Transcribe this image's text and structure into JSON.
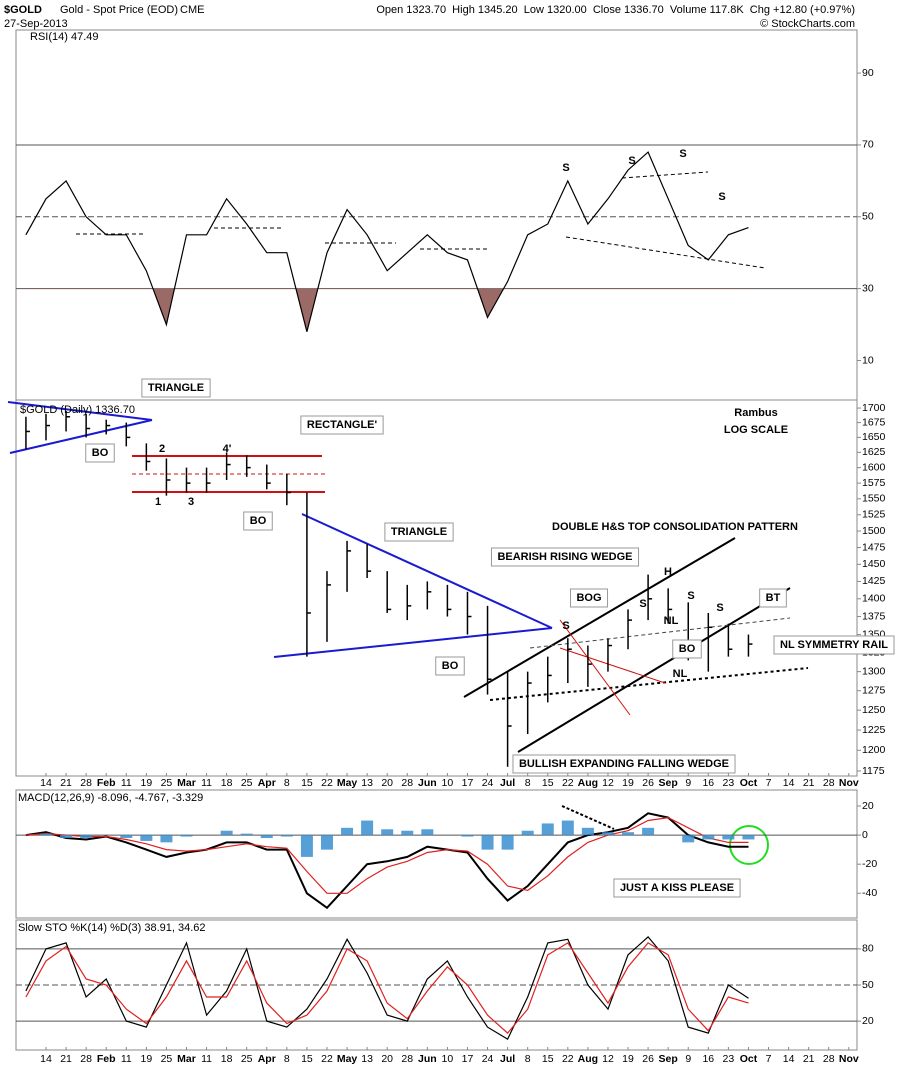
{
  "header": {
    "symbol": "$GOLD",
    "name": "Gold - Spot Price (EOD)",
    "exchange": "CME",
    "date": "27-Sep-2013",
    "quote": "Open 1323.70  High 1345.20  Low 1320.00  Close 1336.70  Volume 117.8K  Chg +12.80 (+0.97%)",
    "source": "© StockCharts.com"
  },
  "chart_data": [
    {
      "type": "line",
      "legend": "RSI(14) 47.49",
      "ylim": [
        -1,
        102
      ],
      "yticks": [
        10,
        30,
        50,
        70,
        90
      ],
      "reference_lines": [
        30,
        50,
        70
      ],
      "oversold_fill": 30,
      "x": [
        -1,
        0,
        1,
        2,
        3,
        4,
        5,
        6,
        7,
        8,
        9,
        10,
        11,
        12,
        13,
        14,
        15,
        16,
        17,
        18,
        19,
        20,
        21,
        22,
        23,
        24,
        25,
        26,
        27,
        28,
        29,
        30,
        31,
        32,
        33,
        34,
        35
      ],
      "series": [
        {
          "name": "RSI(14)",
          "color": "#000000",
          "values": [
            45,
            55,
            60,
            50,
            45,
            45,
            35,
            20,
            45,
            45,
            55,
            48,
            40,
            40,
            18,
            40,
            52,
            45,
            35,
            40,
            45,
            40,
            38,
            22,
            32,
            45,
            48,
            60,
            48,
            55,
            63,
            68,
            55,
            42,
            38,
            45,
            47
          ]
        }
      ],
      "annotations": [
        "S",
        "S",
        "S",
        "S"
      ]
    },
    {
      "type": "ohlc",
      "legend": "$GOLD (Daily) 1336.70",
      "log_scale": true,
      "color": "#000000",
      "ylim": [
        1169,
        1714
      ],
      "yticks": [
        1175,
        1200,
        1225,
        1250,
        1275,
        1300,
        1325,
        1350,
        1375,
        1400,
        1425,
        1450,
        1475,
        1500,
        1525,
        1550,
        1575,
        1600,
        1625,
        1650,
        1675,
        1700
      ],
      "x": [
        -1,
        0,
        1,
        2,
        3,
        4,
        5,
        6,
        7,
        8,
        9,
        10,
        11,
        12,
        13,
        14,
        15,
        16,
        17,
        18,
        19,
        20,
        21,
        22,
        23,
        24,
        25,
        26,
        27,
        28,
        29,
        30,
        31,
        32,
        33,
        34,
        35
      ],
      "high": [
        1685,
        1690,
        1695,
        1690,
        1680,
        1675,
        1640,
        1615,
        1600,
        1600,
        1625,
        1620,
        1605,
        1590,
        1560,
        1440,
        1485,
        1480,
        1440,
        1420,
        1425,
        1420,
        1410,
        1390,
        1300,
        1300,
        1320,
        1345,
        1335,
        1345,
        1385,
        1435,
        1415,
        1395,
        1380,
        1365,
        1350
      ],
      "low": [
        1630,
        1645,
        1660,
        1650,
        1655,
        1635,
        1595,
        1555,
        1560,
        1560,
        1580,
        1585,
        1565,
        1540,
        1320,
        1340,
        1410,
        1430,
        1380,
        1370,
        1385,
        1375,
        1350,
        1270,
        1180,
        1220,
        1260,
        1285,
        1280,
        1300,
        1330,
        1370,
        1365,
        1315,
        1300,
        1320,
        1320
      ],
      "close": [
        1660,
        1670,
        1685,
        1665,
        1670,
        1650,
        1610,
        1580,
        1575,
        1575,
        1605,
        1600,
        1575,
        1560,
        1380,
        1420,
        1470,
        1440,
        1385,
        1390,
        1410,
        1385,
        1375,
        1290,
        1230,
        1285,
        1295,
        1330,
        1310,
        1335,
        1370,
        1400,
        1385,
        1330,
        1360,
        1330,
        1337
      ],
      "xlim": [
        -1.5,
        40.4
      ],
      "xticks": [
        {
          "value": 0,
          "label": "14"
        },
        {
          "value": 1,
          "label": "21"
        },
        {
          "value": 2,
          "label": "28"
        },
        {
          "value": 3,
          "label": "Feb"
        },
        {
          "value": 4,
          "label": "11"
        },
        {
          "value": 5,
          "label": "19"
        },
        {
          "value": 6,
          "label": "25"
        },
        {
          "value": 7,
          "label": "Mar"
        },
        {
          "value": 8,
          "label": "11"
        },
        {
          "value": 9,
          "label": "18"
        },
        {
          "value": 10,
          "label": "25"
        },
        {
          "value": 11,
          "label": "Apr"
        },
        {
          "value": 12,
          "label": "8"
        },
        {
          "value": 13,
          "label": "15"
        },
        {
          "value": 14,
          "label": "22"
        },
        {
          "value": 15,
          "label": "May"
        },
        {
          "value": 16,
          "label": "13"
        },
        {
          "value": 17,
          "label": "20"
        },
        {
          "value": 18,
          "label": "28"
        },
        {
          "value": 19,
          "label": "Jun"
        },
        {
          "value": 20,
          "label": "10"
        },
        {
          "value": 21,
          "label": "17"
        },
        {
          "value": 22,
          "label": "24"
        },
        {
          "value": 23,
          "label": "Jul"
        },
        {
          "value": 24,
          "label": "8"
        },
        {
          "value": 25,
          "label": "15"
        },
        {
          "value": 26,
          "label": "22"
        },
        {
          "value": 27,
          "label": "Aug"
        },
        {
          "value": 28,
          "label": "12"
        },
        {
          "value": 29,
          "label": "19"
        },
        {
          "value": 30,
          "label": "26"
        },
        {
          "value": 31,
          "label": "Sep"
        },
        {
          "value": 32,
          "label": "9"
        },
        {
          "value": 33,
          "label": "16"
        },
        {
          "value": 34,
          "label": "23"
        },
        {
          "value": 35,
          "label": "Oct"
        },
        {
          "value": 36,
          "label": "7"
        },
        {
          "value": 37,
          "label": "14"
        },
        {
          "value": 38,
          "label": "21"
        },
        {
          "value": 39,
          "label": "28"
        },
        {
          "value": 40,
          "label": "Nov"
        }
      ],
      "annotations": [
        "TRIANGLE",
        "BO",
        "RECTANGLE'",
        "2",
        "4'",
        "1",
        "3",
        "BO",
        "TRIANGLE",
        "BO",
        "Rambus",
        "LOG SCALE",
        "DOUBLE H&S TOP CONSOLIDATION PATTERN",
        "BEARISH RISING WEDGE",
        "H",
        "S",
        "S",
        "S",
        "S",
        "BOG",
        "NL",
        "NL",
        "BO",
        "BT",
        "NL SYMMETRY RAIL",
        "BULLISH EXPANDING FALLING WEDGE"
      ]
    },
    {
      "type": "line",
      "legend": "MACD(12,26,9) -8.096, -4.767, -3.329",
      "ylim": [
        -57,
        31
      ],
      "yticks": [
        -40,
        -20,
        0,
        20
      ],
      "reference_lines": [
        0
      ],
      "x": [
        -1,
        0,
        1,
        2,
        3,
        4,
        5,
        6,
        7,
        8,
        9,
        10,
        11,
        12,
        13,
        14,
        15,
        16,
        17,
        18,
        19,
        20,
        21,
        22,
        23,
        24,
        25,
        26,
        27,
        28,
        29,
        30,
        31,
        32,
        33,
        34,
        35
      ],
      "series": [
        {
          "name": "MACD",
          "color": "#000000",
          "values": [
            0,
            2,
            -2,
            -3,
            -1,
            -5,
            -10,
            -15,
            -12,
            -10,
            -5,
            -5,
            -10,
            -10,
            -40,
            -50,
            -35,
            -20,
            -18,
            -15,
            -8,
            -10,
            -12,
            -30,
            -45,
            -35,
            -20,
            -5,
            0,
            2,
            5,
            15,
            12,
            0,
            -5,
            -8,
            -8
          ]
        },
        {
          "name": "Signal",
          "color": "#e02020",
          "values": [
            0,
            1,
            0,
            -1,
            -1,
            -3,
            -6,
            -10,
            -11,
            -10,
            -8,
            -6,
            -8,
            -9,
            -25,
            -40,
            -40,
            -30,
            -22,
            -18,
            -12,
            -10,
            -11,
            -20,
            -35,
            -38,
            -28,
            -15,
            -5,
            0,
            3,
            10,
            12,
            5,
            -2,
            -5,
            -5
          ]
        },
        {
          "name": "Histogram",
          "color": "#3a8fd0",
          "style": "histogram",
          "values": [
            0,
            1,
            -2,
            -2,
            0,
            -2,
            -4,
            -5,
            -1,
            0,
            3,
            1,
            -2,
            -1,
            -15,
            -10,
            5,
            10,
            4,
            3,
            4,
            0,
            -1,
            -10,
            -10,
            3,
            8,
            10,
            5,
            2,
            2,
            5,
            0,
            -5,
            -3,
            -3,
            -3
          ]
        }
      ],
      "annotations": [
        "JUST A KISS PLEASE"
      ]
    },
    {
      "type": "line",
      "legend": "Slow STO %K(14) %D(3) 38.91, 34.62",
      "ylim": [
        -4,
        104
      ],
      "yticks": [
        20,
        50,
        80
      ],
      "reference_lines": [
        20,
        50,
        80
      ],
      "x": [
        -1,
        0,
        1,
        2,
        3,
        4,
        5,
        6,
        7,
        8,
        9,
        10,
        11,
        12,
        13,
        14,
        15,
        16,
        17,
        18,
        19,
        20,
        21,
        22,
        23,
        24,
        25,
        26,
        27,
        28,
        29,
        30,
        31,
        32,
        33,
        34,
        35
      ],
      "series": [
        {
          "name": "%K",
          "color": "#000000",
          "values": [
            45,
            80,
            85,
            40,
            55,
            20,
            15,
            50,
            85,
            25,
            45,
            80,
            20,
            15,
            30,
            55,
            88,
            60,
            25,
            20,
            55,
            70,
            40,
            15,
            5,
            40,
            85,
            88,
            50,
            30,
            75,
            90,
            70,
            15,
            10,
            50,
            39
          ]
        },
        {
          "name": "%D",
          "color": "#e02020",
          "values": [
            40,
            70,
            82,
            55,
            50,
            30,
            18,
            40,
            70,
            40,
            40,
            70,
            35,
            18,
            25,
            45,
            80,
            70,
            35,
            22,
            45,
            65,
            50,
            25,
            10,
            30,
            75,
            85,
            60,
            35,
            65,
            85,
            75,
            30,
            12,
            40,
            35
          ]
        }
      ],
      "xlim": [
        -1.5,
        40.4
      ],
      "xticks": [
        {
          "value": 0,
          "label": "14"
        },
        {
          "value": 1,
          "label": "21"
        },
        {
          "value": 2,
          "label": "28"
        },
        {
          "value": 3,
          "label": "Feb"
        },
        {
          "value": 4,
          "label": "11"
        },
        {
          "value": 5,
          "label": "19"
        },
        {
          "value": 6,
          "label": "25"
        },
        {
          "value": 7,
          "label": "Mar"
        },
        {
          "value": 8,
          "label": "11"
        },
        {
          "value": 9,
          "label": "18"
        },
        {
          "value": 10,
          "label": "25"
        },
        {
          "value": 11,
          "label": "Apr"
        },
        {
          "value": 12,
          "label": "8"
        },
        {
          "value": 13,
          "label": "15"
        },
        {
          "value": 14,
          "label": "22"
        },
        {
          "value": 15,
          "label": "May"
        },
        {
          "value": 16,
          "label": "13"
        },
        {
          "value": 17,
          "label": "20"
        },
        {
          "value": 18,
          "label": "28"
        },
        {
          "value": 19,
          "label": "Jun"
        },
        {
          "value": 20,
          "label": "10"
        },
        {
          "value": 21,
          "label": "17"
        },
        {
          "value": 22,
          "label": "24"
        },
        {
          "value": 23,
          "label": "Jul"
        },
        {
          "value": 24,
          "label": "8"
        },
        {
          "value": 25,
          "label": "15"
        },
        {
          "value": 26,
          "label": "22"
        },
        {
          "value": 27,
          "label": "Aug"
        },
        {
          "value": 28,
          "label": "12"
        },
        {
          "value": 29,
          "label": "19"
        },
        {
          "value": 30,
          "label": "26"
        },
        {
          "value": 31,
          "label": "Sep"
        },
        {
          "value": 32,
          "label": "9"
        },
        {
          "value": 33,
          "label": "16"
        },
        {
          "value": 34,
          "label": "23"
        },
        {
          "value": 35,
          "label": "Oct"
        },
        {
          "value": 36,
          "label": "7"
        },
        {
          "value": 37,
          "label": "14"
        },
        {
          "value": 38,
          "label": "21"
        },
        {
          "value": 39,
          "label": "28"
        },
        {
          "value": 40,
          "label": "Nov"
        }
      ]
    }
  ]
}
